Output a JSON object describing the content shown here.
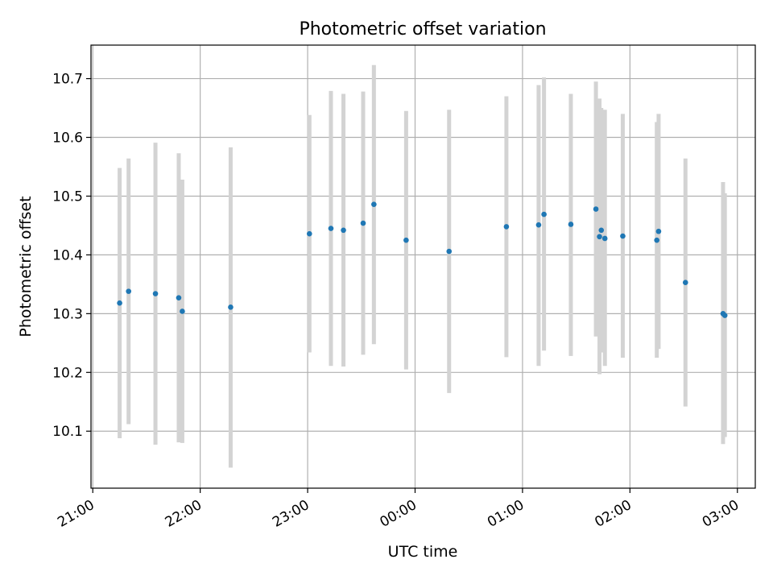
{
  "chart_data": {
    "type": "scatter",
    "title": "Photometric offset variation",
    "xlabel": "UTC time",
    "ylabel": "Photometric offset",
    "grid": true,
    "colors": {
      "point": "#1f77b4",
      "errorbar": "#d3d3d3",
      "grid": "#b0b0b0"
    },
    "xlim": [
      "20:59",
      "03:10"
    ],
    "ylim": [
      10.003,
      10.757
    ],
    "x_ticks": [
      "21:00",
      "22:00",
      "23:00",
      "00:00",
      "01:00",
      "02:00",
      "03:00"
    ],
    "y_ticks": [
      "10.1",
      "10.2",
      "10.3",
      "10.4",
      "10.5",
      "10.6",
      "10.7"
    ],
    "series": [
      {
        "points": [
          {
            "x": "21:15",
            "y": 10.318,
            "err_low": 10.088,
            "err_high": 10.548
          },
          {
            "x": "21:20",
            "y": 10.338,
            "err_low": 10.112,
            "err_high": 10.564
          },
          {
            "x": "21:35",
            "y": 10.334,
            "err_low": 10.077,
            "err_high": 10.591
          },
          {
            "x": "21:48",
            "y": 10.327,
            "err_low": 10.081,
            "err_high": 10.573
          },
          {
            "x": "21:50",
            "y": 10.304,
            "err_low": 10.08,
            "err_high": 10.528
          },
          {
            "x": "22:17",
            "y": 10.311,
            "err_low": 10.038,
            "err_high": 10.583
          },
          {
            "x": "23:01",
            "y": 10.436,
            "err_low": 10.234,
            "err_high": 10.638
          },
          {
            "x": "23:13",
            "y": 10.445,
            "err_low": 10.211,
            "err_high": 10.679
          },
          {
            "x": "23:20",
            "y": 10.442,
            "err_low": 10.21,
            "err_high": 10.674
          },
          {
            "x": "23:31",
            "y": 10.454,
            "err_low": 10.23,
            "err_high": 10.678
          },
          {
            "x": "23:37",
            "y": 10.486,
            "err_low": 10.248,
            "err_high": 10.723
          },
          {
            "x": "23:55",
            "y": 10.425,
            "err_low": 10.205,
            "err_high": 10.645
          },
          {
            "x": "00:19",
            "y": 10.406,
            "err_low": 10.165,
            "err_high": 10.647
          },
          {
            "x": "00:51",
            "y": 10.448,
            "err_low": 10.226,
            "err_high": 10.67
          },
          {
            "x": "01:09",
            "y": 10.451,
            "err_low": 10.211,
            "err_high": 10.689
          },
          {
            "x": "01:12",
            "y": 10.469,
            "err_low": 10.237,
            "err_high": 10.702
          },
          {
            "x": "01:27",
            "y": 10.452,
            "err_low": 10.228,
            "err_high": 10.674
          },
          {
            "x": "01:41",
            "y": 10.478,
            "err_low": 10.261,
            "err_high": 10.695
          },
          {
            "x": "01:43",
            "y": 10.431,
            "err_low": 10.197,
            "err_high": 10.666
          },
          {
            "x": "01:44",
            "y": 10.442,
            "err_low": 10.234,
            "err_high": 10.65
          },
          {
            "x": "01:46",
            "y": 10.428,
            "err_low": 10.211,
            "err_high": 10.647
          },
          {
            "x": "01:56",
            "y": 10.432,
            "err_low": 10.225,
            "err_high": 10.64
          },
          {
            "x": "02:15",
            "y": 10.425,
            "err_low": 10.225,
            "err_high": 10.626
          },
          {
            "x": "02:16",
            "y": 10.44,
            "err_low": 10.24,
            "err_high": 10.64
          },
          {
            "x": "02:31",
            "y": 10.353,
            "err_low": 10.142,
            "err_high": 10.564
          },
          {
            "x": "02:52",
            "y": 10.3,
            "err_low": 10.078,
            "err_high": 10.524
          },
          {
            "x": "02:53",
            "y": 10.297,
            "err_low": 10.09,
            "err_high": 10.505
          }
        ]
      }
    ]
  }
}
